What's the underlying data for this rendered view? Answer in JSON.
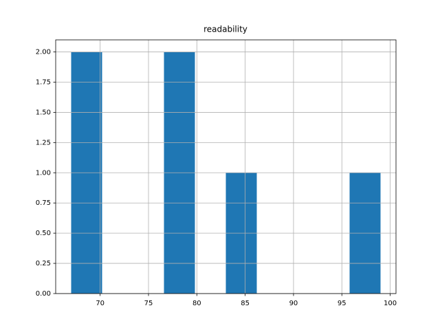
{
  "chart_data": {
    "type": "histogram",
    "title": "readability",
    "bins": [
      67,
      70.2,
      73.4,
      76.6,
      79.8,
      83,
      86.2,
      89.4,
      92.6,
      95.8,
      99
    ],
    "values": [
      2,
      0,
      0,
      2,
      0,
      1,
      0,
      0,
      0,
      1
    ],
    "color": "#1f77b4",
    "xlim": [
      65.4,
      100.6
    ],
    "xticks": [
      70,
      75,
      80,
      85,
      90,
      95,
      100
    ],
    "ylim": [
      0,
      2.1
    ],
    "yticks": [
      {
        "value": 0,
        "label": "0.00"
      },
      {
        "value": 0.25,
        "label": "0.25"
      },
      {
        "value": 0.5,
        "label": "0.50"
      },
      {
        "value": 0.75,
        "label": "0.75"
      },
      {
        "value": 1,
        "label": "1.00"
      },
      {
        "value": 1.25,
        "label": "1.25"
      },
      {
        "value": 1.5,
        "label": "1.50"
      },
      {
        "value": 1.75,
        "label": "1.75"
      },
      {
        "value": 2,
        "label": "2.00"
      }
    ],
    "grid": true
  }
}
